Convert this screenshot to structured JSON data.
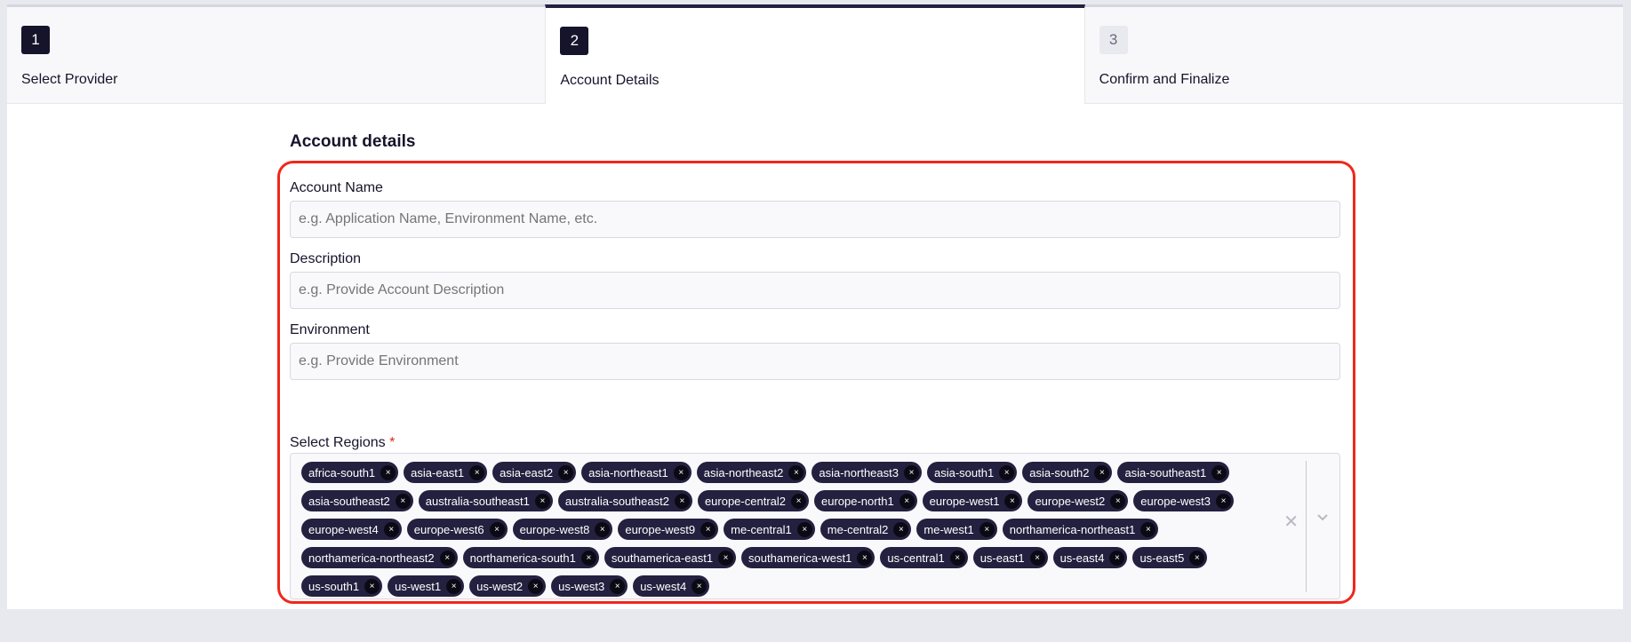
{
  "steps": [
    {
      "number": "1",
      "label": "Select Provider",
      "state": "complete"
    },
    {
      "number": "2",
      "label": "Account Details",
      "state": "active"
    },
    {
      "number": "3",
      "label": "Confirm and Finalize",
      "state": "pending"
    }
  ],
  "form": {
    "heading": "Account details",
    "account_name": {
      "label": "Account Name",
      "placeholder": "e.g. Application Name, Environment Name, etc."
    },
    "description": {
      "label": "Description",
      "placeholder": "e.g. Provide Account Description"
    },
    "environment": {
      "label": "Environment",
      "placeholder": "e.g. Provide Environment"
    },
    "regions": {
      "label": "Select Regions",
      "required_mark": "*",
      "remove_glyph": "×",
      "clear_glyph": "✕",
      "rows": [
        [
          "africa-south1",
          "asia-east1",
          "asia-east2",
          "asia-northeast1",
          "asia-northeast2",
          "asia-northeast3",
          "asia-south1",
          "asia-south2",
          "asia-southeast1"
        ],
        [
          "asia-southeast2",
          "australia-southeast1",
          "australia-southeast2",
          "europe-central2",
          "europe-north1",
          "europe-west1",
          "europe-west2",
          "europe-west3"
        ],
        [
          "europe-west4",
          "europe-west6",
          "europe-west8",
          "europe-west9",
          "me-central1",
          "me-central2",
          "me-west1",
          "northamerica-northeast1"
        ],
        [
          "northamerica-northeast2",
          "northamerica-south1",
          "southamerica-east1",
          "southamerica-west1",
          "us-central1",
          "us-east1",
          "us-east4",
          "us-east5"
        ],
        [
          "us-south1",
          "us-west1",
          "us-west2",
          "us-west3",
          "us-west4"
        ]
      ]
    }
  },
  "colors": {
    "accent": "#24203f",
    "highlight": "#f0271b"
  }
}
